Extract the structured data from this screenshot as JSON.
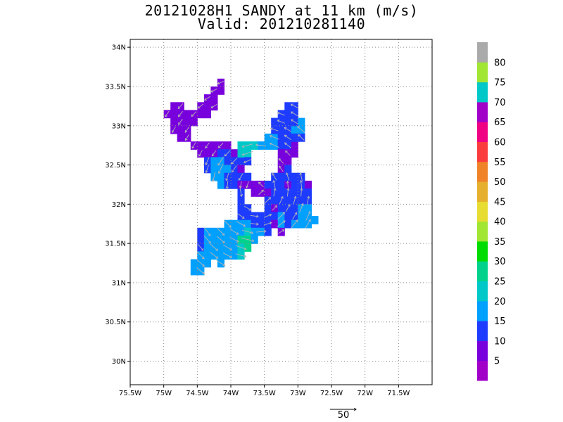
{
  "title": {
    "line1": "20121028H1 SANDY at 11 km (m/s)",
    "line2": "Valid: 201210281140"
  },
  "map": {
    "lon_range": [
      -75.5,
      -71.0
    ],
    "lat_range": [
      29.7,
      34.1
    ],
    "x_ticks": [
      {
        "value": -75.5,
        "label": "75.5W"
      },
      {
        "value": -75.0,
        "label": "75W"
      },
      {
        "value": -74.5,
        "label": "74.5W"
      },
      {
        "value": -74.0,
        "label": "74W"
      },
      {
        "value": -73.5,
        "label": "73.5W"
      },
      {
        "value": -73.0,
        "label": "73W"
      },
      {
        "value": -72.5,
        "label": "72.5W"
      },
      {
        "value": -72.0,
        "label": "72W"
      },
      {
        "value": -71.5,
        "label": "71.5W"
      }
    ],
    "y_ticks": [
      {
        "value": 30.0,
        "label": "30N"
      },
      {
        "value": 30.5,
        "label": "30.5N"
      },
      {
        "value": 31.0,
        "label": "31N"
      },
      {
        "value": 31.5,
        "label": "31.5N"
      },
      {
        "value": 32.0,
        "label": "32N"
      },
      {
        "value": 32.5,
        "label": "32.5N"
      },
      {
        "value": 33.0,
        "label": "33N"
      },
      {
        "value": 33.5,
        "label": "33.5N"
      },
      {
        "value": 34.0,
        "label": "34N"
      }
    ],
    "grid": "dotted"
  },
  "colorbar": {
    "levels": [
      {
        "max": 5,
        "color": "#a000c8",
        "label": "5"
      },
      {
        "max": 10,
        "color": "#7800dc",
        "label": "10"
      },
      {
        "max": 15,
        "color": "#1e3cff",
        "label": "15"
      },
      {
        "max": 20,
        "color": "#00a0ff",
        "label": "20"
      },
      {
        "max": 25,
        "color": "#00c8c8",
        "label": "25"
      },
      {
        "max": 30,
        "color": "#00d28c",
        "label": "30"
      },
      {
        "max": 35,
        "color": "#00dc00",
        "label": "35"
      },
      {
        "max": 40,
        "color": "#a0e632",
        "label": "40"
      },
      {
        "max": 45,
        "color": "#e6dc32",
        "label": "45"
      },
      {
        "max": 50,
        "color": "#e6af2d",
        "label": "50"
      },
      {
        "max": 55,
        "color": "#f08228",
        "label": "55"
      },
      {
        "max": 60,
        "color": "#fa3c3c",
        "label": "60"
      },
      {
        "max": 65,
        "color": "#f00082",
        "label": "65"
      },
      {
        "max": 70,
        "color": "#a000c8",
        "label": "70"
      },
      {
        "max": 75,
        "color": "#00c8c8",
        "label": "75"
      },
      {
        "max": 80,
        "color": "#a0e632",
        "label": "80"
      },
      {
        "max": 85,
        "color": "#aaaaaa",
        "label": ""
      }
    ]
  },
  "field": {
    "cell_deg": 0.1,
    "cells": [
      {
        "lon": -74.95,
        "lat": 33.15,
        "v": 8
      },
      {
        "lon": -74.85,
        "lat": 33.15,
        "v": 8
      },
      {
        "lon": -74.75,
        "lat": 33.15,
        "v": 8
      },
      {
        "lon": -74.85,
        "lat": 33.25,
        "v": 8
      },
      {
        "lon": -74.75,
        "lat": 33.25,
        "v": 8
      },
      {
        "lon": -74.85,
        "lat": 33.05,
        "v": 8
      },
      {
        "lon": -74.75,
        "lat": 33.05,
        "v": 8
      },
      {
        "lon": -74.65,
        "lat": 33.05,
        "v": 8
      },
      {
        "lon": -74.85,
        "lat": 32.95,
        "v": 8
      },
      {
        "lon": -74.75,
        "lat": 32.95,
        "v": 8
      },
      {
        "lon": -74.65,
        "lat": 32.95,
        "v": 8
      },
      {
        "lon": -74.75,
        "lat": 32.85,
        "v": 8
      },
      {
        "lon": -74.65,
        "lat": 32.85,
        "v": 8
      },
      {
        "lon": -74.65,
        "lat": 33.15,
        "v": 8
      },
      {
        "lon": -74.55,
        "lat": 33.15,
        "v": 8
      },
      {
        "lon": -74.45,
        "lat": 33.15,
        "v": 8
      },
      {
        "lon": -74.45,
        "lat": 33.25,
        "v": 8
      },
      {
        "lon": -74.35,
        "lat": 33.25,
        "v": 8
      },
      {
        "lon": -74.35,
        "lat": 33.35,
        "v": 8
      },
      {
        "lon": -74.25,
        "lat": 33.35,
        "v": 8
      },
      {
        "lon": -74.25,
        "lat": 33.45,
        "v": 8
      },
      {
        "lon": -74.15,
        "lat": 33.45,
        "v": 8
      },
      {
        "lon": -74.15,
        "lat": 33.55,
        "v": 8
      },
      {
        "lon": -74.35,
        "lat": 33.15,
        "v": 8
      },
      {
        "lon": -74.25,
        "lat": 33.25,
        "v": 8
      },
      {
        "lon": -74.55,
        "lat": 33.05,
        "v": 8
      },
      {
        "lon": -74.55,
        "lat": 32.75,
        "v": 8
      },
      {
        "lon": -74.45,
        "lat": 32.75,
        "v": 8
      },
      {
        "lon": -74.35,
        "lat": 32.75,
        "v": 8
      },
      {
        "lon": -74.25,
        "lat": 32.75,
        "v": 8
      },
      {
        "lon": -74.15,
        "lat": 32.75,
        "v": 8
      },
      {
        "lon": -74.05,
        "lat": 32.75,
        "v": 8
      },
      {
        "lon": -74.45,
        "lat": 32.65,
        "v": 8
      },
      {
        "lon": -74.35,
        "lat": 32.65,
        "v": 8
      },
      {
        "lon": -74.25,
        "lat": 32.65,
        "v": 8
      },
      {
        "lon": -74.15,
        "lat": 32.65,
        "v": 12
      },
      {
        "lon": -74.05,
        "lat": 32.65,
        "v": 12
      },
      {
        "lon": -73.95,
        "lat": 32.65,
        "v": 8
      },
      {
        "lon": -74.35,
        "lat": 32.55,
        "v": 12
      },
      {
        "lon": -74.25,
        "lat": 32.55,
        "v": 18
      },
      {
        "lon": -74.15,
        "lat": 32.55,
        "v": 18
      },
      {
        "lon": -74.05,
        "lat": 32.55,
        "v": 12
      },
      {
        "lon": -73.95,
        "lat": 32.55,
        "v": 12
      },
      {
        "lon": -73.85,
        "lat": 32.55,
        "v": 12
      },
      {
        "lon": -74.35,
        "lat": 32.45,
        "v": 12
      },
      {
        "lon": -74.25,
        "lat": 32.45,
        "v": 18
      },
      {
        "lon": -74.15,
        "lat": 32.45,
        "v": 18
      },
      {
        "lon": -74.05,
        "lat": 32.45,
        "v": 18
      },
      {
        "lon": -73.95,
        "lat": 32.45,
        "v": 12
      },
      {
        "lon": -73.85,
        "lat": 32.45,
        "v": 8
      },
      {
        "lon": -74.25,
        "lat": 32.35,
        "v": 18
      },
      {
        "lon": -74.15,
        "lat": 32.35,
        "v": 18
      },
      {
        "lon": -74.05,
        "lat": 32.35,
        "v": 12
      },
      {
        "lon": -73.95,
        "lat": 32.35,
        "v": 12
      },
      {
        "lon": -73.85,
        "lat": 32.35,
        "v": 12
      },
      {
        "lon": -74.15,
        "lat": 32.25,
        "v": 18
      },
      {
        "lon": -74.05,
        "lat": 32.25,
        "v": 12
      },
      {
        "lon": -73.95,
        "lat": 32.25,
        "v": 12
      },
      {
        "lon": -73.85,
        "lat": 32.25,
        "v": 8
      },
      {
        "lon": -73.85,
        "lat": 32.65,
        "v": 22
      },
      {
        "lon": -73.75,
        "lat": 32.65,
        "v": 22
      },
      {
        "lon": -73.85,
        "lat": 32.75,
        "v": 22
      },
      {
        "lon": -73.75,
        "lat": 32.75,
        "v": 22
      },
      {
        "lon": -73.65,
        "lat": 32.75,
        "v": 22
      },
      {
        "lon": -73.55,
        "lat": 32.75,
        "v": 18
      },
      {
        "lon": -73.45,
        "lat": 32.75,
        "v": 18
      },
      {
        "lon": -73.35,
        "lat": 32.75,
        "v": 18
      },
      {
        "lon": -73.45,
        "lat": 32.85,
        "v": 18
      },
      {
        "lon": -73.35,
        "lat": 32.85,
        "v": 18
      },
      {
        "lon": -73.25,
        "lat": 32.85,
        "v": 12
      },
      {
        "lon": -73.35,
        "lat": 32.95,
        "v": 12
      },
      {
        "lon": -73.25,
        "lat": 32.95,
        "v": 12
      },
      {
        "lon": -73.15,
        "lat": 32.95,
        "v": 12
      },
      {
        "lon": -73.05,
        "lat": 32.95,
        "v": 18
      },
      {
        "lon": -72.95,
        "lat": 32.95,
        "v": 18
      },
      {
        "lon": -73.35,
        "lat": 33.05,
        "v": 12
      },
      {
        "lon": -73.25,
        "lat": 33.05,
        "v": 12
      },
      {
        "lon": -73.15,
        "lat": 33.05,
        "v": 12
      },
      {
        "lon": -73.05,
        "lat": 33.05,
        "v": 12
      },
      {
        "lon": -72.95,
        "lat": 33.05,
        "v": 18
      },
      {
        "lon": -73.25,
        "lat": 33.15,
        "v": 12
      },
      {
        "lon": -73.15,
        "lat": 33.15,
        "v": 12
      },
      {
        "lon": -73.05,
        "lat": 33.15,
        "v": 12
      },
      {
        "lon": -73.15,
        "lat": 33.25,
        "v": 12
      },
      {
        "lon": -73.05,
        "lat": 33.25,
        "v": 12
      },
      {
        "lon": -73.25,
        "lat": 32.75,
        "v": 12
      },
      {
        "lon": -73.15,
        "lat": 32.75,
        "v": 12
      },
      {
        "lon": -73.05,
        "lat": 32.75,
        "v": 8
      },
      {
        "lon": -72.95,
        "lat": 32.85,
        "v": 12
      },
      {
        "lon": -73.05,
        "lat": 32.85,
        "v": 12
      },
      {
        "lon": -73.15,
        "lat": 32.85,
        "v": 12
      },
      {
        "lon": -73.25,
        "lat": 32.65,
        "v": 8
      },
      {
        "lon": -73.15,
        "lat": 32.65,
        "v": 8
      },
      {
        "lon": -73.05,
        "lat": 32.65,
        "v": 8
      },
      {
        "lon": -73.25,
        "lat": 32.55,
        "v": 8
      },
      {
        "lon": -73.15,
        "lat": 32.55,
        "v": 8
      },
      {
        "lon": -73.25,
        "lat": 32.45,
        "v": 8
      },
      {
        "lon": -73.15,
        "lat": 32.45,
        "v": 12
      },
      {
        "lon": -73.75,
        "lat": 32.55,
        "v": 12
      },
      {
        "lon": -73.75,
        "lat": 32.35,
        "v": 12
      },
      {
        "lon": -73.75,
        "lat": 32.25,
        "v": 8
      },
      {
        "lon": -73.65,
        "lat": 32.25,
        "v": 8
      },
      {
        "lon": -73.55,
        "lat": 32.25,
        "v": 8
      },
      {
        "lon": -73.45,
        "lat": 32.25,
        "v": 12
      },
      {
        "lon": -73.35,
        "lat": 32.25,
        "v": 12
      },
      {
        "lon": -73.25,
        "lat": 32.25,
        "v": 12
      },
      {
        "lon": -73.15,
        "lat": 32.25,
        "v": 8
      },
      {
        "lon": -73.05,
        "lat": 32.25,
        "v": 12
      },
      {
        "lon": -72.95,
        "lat": 32.25,
        "v": 12
      },
      {
        "lon": -72.85,
        "lat": 32.25,
        "v": 8
      },
      {
        "lon": -73.35,
        "lat": 32.35,
        "v": 12
      },
      {
        "lon": -73.25,
        "lat": 32.35,
        "v": 12
      },
      {
        "lon": -73.15,
        "lat": 32.35,
        "v": 12
      },
      {
        "lon": -73.05,
        "lat": 32.35,
        "v": 12
      },
      {
        "lon": -72.95,
        "lat": 32.35,
        "v": 12
      },
      {
        "lon": -73.65,
        "lat": 32.15,
        "v": 8
      },
      {
        "lon": -73.55,
        "lat": 32.15,
        "v": 8
      },
      {
        "lon": -73.45,
        "lat": 32.15,
        "v": 8
      },
      {
        "lon": -73.35,
        "lat": 32.15,
        "v": 12
      },
      {
        "lon": -73.25,
        "lat": 32.15,
        "v": 12
      },
      {
        "lon": -73.15,
        "lat": 32.15,
        "v": 12
      },
      {
        "lon": -73.05,
        "lat": 32.15,
        "v": 12
      },
      {
        "lon": -72.95,
        "lat": 32.15,
        "v": 12
      },
      {
        "lon": -72.85,
        "lat": 32.15,
        "v": 12
      },
      {
        "lon": -73.85,
        "lat": 32.15,
        "v": 12
      },
      {
        "lon": -73.85,
        "lat": 32.05,
        "v": 12
      },
      {
        "lon": -73.45,
        "lat": 32.05,
        "v": 12
      },
      {
        "lon": -73.35,
        "lat": 32.05,
        "v": 12
      },
      {
        "lon": -73.25,
        "lat": 32.05,
        "v": 12
      },
      {
        "lon": -73.15,
        "lat": 32.05,
        "v": 12
      },
      {
        "lon": -73.05,
        "lat": 32.05,
        "v": 12
      },
      {
        "lon": -72.95,
        "lat": 32.05,
        "v": 12
      },
      {
        "lon": -72.85,
        "lat": 32.05,
        "v": 12
      },
      {
        "lon": -73.85,
        "lat": 31.95,
        "v": 12
      },
      {
        "lon": -73.75,
        "lat": 31.95,
        "v": 12
      },
      {
        "lon": -73.45,
        "lat": 31.95,
        "v": 12
      },
      {
        "lon": -73.35,
        "lat": 31.95,
        "v": 8
      },
      {
        "lon": -73.25,
        "lat": 31.95,
        "v": 12
      },
      {
        "lon": -73.15,
        "lat": 31.95,
        "v": 12
      },
      {
        "lon": -73.05,
        "lat": 31.95,
        "v": 12
      },
      {
        "lon": -72.95,
        "lat": 31.95,
        "v": 18
      },
      {
        "lon": -72.85,
        "lat": 31.95,
        "v": 18
      },
      {
        "lon": -73.85,
        "lat": 31.85,
        "v": 12
      },
      {
        "lon": -73.75,
        "lat": 31.85,
        "v": 12
      },
      {
        "lon": -73.65,
        "lat": 31.85,
        "v": 12
      },
      {
        "lon": -73.55,
        "lat": 31.85,
        "v": 12
      },
      {
        "lon": -73.45,
        "lat": 31.85,
        "v": 12
      },
      {
        "lon": -73.35,
        "lat": 31.85,
        "v": 12
      },
      {
        "lon": -73.25,
        "lat": 31.85,
        "v": 18
      },
      {
        "lon": -73.15,
        "lat": 31.85,
        "v": 12
      },
      {
        "lon": -73.05,
        "lat": 31.85,
        "v": 12
      },
      {
        "lon": -72.95,
        "lat": 31.85,
        "v": 18
      },
      {
        "lon": -72.85,
        "lat": 31.85,
        "v": 18
      },
      {
        "lon": -72.75,
        "lat": 31.8,
        "v": 18
      },
      {
        "lon": -74.05,
        "lat": 31.75,
        "v": 18
      },
      {
        "lon": -73.95,
        "lat": 31.75,
        "v": 18
      },
      {
        "lon": -73.85,
        "lat": 31.75,
        "v": 18
      },
      {
        "lon": -73.75,
        "lat": 31.75,
        "v": 18
      },
      {
        "lon": -73.65,
        "lat": 31.75,
        "v": 12
      },
      {
        "lon": -73.55,
        "lat": 31.75,
        "v": 12
      },
      {
        "lon": -73.45,
        "lat": 31.75,
        "v": 12
      },
      {
        "lon": -73.35,
        "lat": 31.75,
        "v": 8
      },
      {
        "lon": -73.25,
        "lat": 31.75,
        "v": 18
      },
      {
        "lon": -73.15,
        "lat": 31.75,
        "v": 12
      },
      {
        "lon": -73.05,
        "lat": 31.75,
        "v": 18
      },
      {
        "lon": -72.95,
        "lat": 31.75,
        "v": 18
      },
      {
        "lon": -72.85,
        "lat": 31.75,
        "v": 18
      },
      {
        "lon": -74.45,
        "lat": 31.65,
        "v": 12
      },
      {
        "lon": -74.35,
        "lat": 31.65,
        "v": 18
      },
      {
        "lon": -74.25,
        "lat": 31.65,
        "v": 18
      },
      {
        "lon": -74.15,
        "lat": 31.65,
        "v": 18
      },
      {
        "lon": -74.05,
        "lat": 31.65,
        "v": 18
      },
      {
        "lon": -73.95,
        "lat": 31.65,
        "v": 18
      },
      {
        "lon": -73.85,
        "lat": 31.65,
        "v": 18
      },
      {
        "lon": -73.75,
        "lat": 31.65,
        "v": 22
      },
      {
        "lon": -73.65,
        "lat": 31.65,
        "v": 18
      },
      {
        "lon": -73.55,
        "lat": 31.65,
        "v": 18
      },
      {
        "lon": -73.45,
        "lat": 31.65,
        "v": 12
      },
      {
        "lon": -73.25,
        "lat": 31.65,
        "v": 8
      },
      {
        "lon": -74.45,
        "lat": 31.55,
        "v": 12
      },
      {
        "lon": -74.35,
        "lat": 31.55,
        "v": 18
      },
      {
        "lon": -74.25,
        "lat": 31.55,
        "v": 18
      },
      {
        "lon": -74.15,
        "lat": 31.55,
        "v": 18
      },
      {
        "lon": -74.05,
        "lat": 31.55,
        "v": 18
      },
      {
        "lon": -73.95,
        "lat": 31.55,
        "v": 18
      },
      {
        "lon": -73.85,
        "lat": 31.55,
        "v": 28
      },
      {
        "lon": -73.75,
        "lat": 31.55,
        "v": 28
      },
      {
        "lon": -73.65,
        "lat": 31.55,
        "v": 18
      },
      {
        "lon": -74.45,
        "lat": 31.45,
        "v": 12
      },
      {
        "lon": -74.35,
        "lat": 31.45,
        "v": 18
      },
      {
        "lon": -74.25,
        "lat": 31.45,
        "v": 18
      },
      {
        "lon": -74.15,
        "lat": 31.45,
        "v": 18
      },
      {
        "lon": -74.05,
        "lat": 31.45,
        "v": 18
      },
      {
        "lon": -73.95,
        "lat": 31.45,
        "v": 18
      },
      {
        "lon": -73.85,
        "lat": 31.45,
        "v": 22
      },
      {
        "lon": -73.75,
        "lat": 31.45,
        "v": 28
      },
      {
        "lon": -74.45,
        "lat": 31.35,
        "v": 18
      },
      {
        "lon": -74.35,
        "lat": 31.35,
        "v": 18
      },
      {
        "lon": -74.25,
        "lat": 31.35,
        "v": 18
      },
      {
        "lon": -74.15,
        "lat": 31.35,
        "v": 18
      },
      {
        "lon": -74.05,
        "lat": 31.35,
        "v": 18
      },
      {
        "lon": -73.95,
        "lat": 31.35,
        "v": 18
      },
      {
        "lon": -73.85,
        "lat": 31.35,
        "v": 22
      },
      {
        "lon": -74.55,
        "lat": 31.25,
        "v": 18
      },
      {
        "lon": -74.45,
        "lat": 31.25,
        "v": 18
      },
      {
        "lon": -74.35,
        "lat": 31.25,
        "v": 18
      },
      {
        "lon": -74.15,
        "lat": 31.25,
        "v": 18
      },
      {
        "lon": -74.55,
        "lat": 31.15,
        "v": 18
      },
      {
        "lon": -74.45,
        "lat": 31.15,
        "v": 18
      }
    ]
  },
  "vectors": {
    "reference_label": "50"
  }
}
